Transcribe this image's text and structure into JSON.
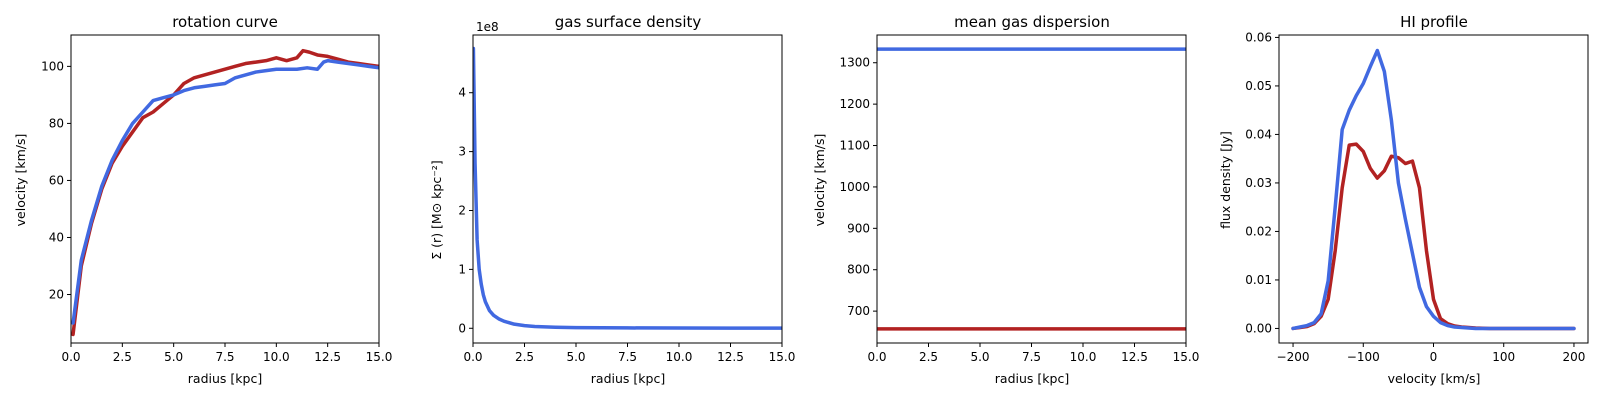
{
  "colors": {
    "red": "#b22222",
    "blue": "#4169e1"
  },
  "chart_data": [
    {
      "type": "line",
      "title": "rotation curve",
      "xlabel": "radius [kpc]",
      "ylabel": "velocity [km/s]",
      "xlim": [
        0,
        15
      ],
      "ylim": [
        3,
        111
      ],
      "xticks": [
        0,
        2.5,
        5,
        7.5,
        10,
        12.5,
        15
      ],
      "xtick_labels": [
        "0.0",
        "2.5",
        "5.0",
        "7.5",
        "10.0",
        "12.5",
        "15.0"
      ],
      "yticks": [
        20,
        40,
        60,
        80,
        100
      ],
      "ytick_labels": [
        "20",
        "40",
        "60",
        "80",
        "100"
      ],
      "series": [
        {
          "color": "red",
          "x": [
            0.1,
            0.5,
            1.0,
            1.5,
            2.0,
            2.5,
            3.0,
            3.5,
            4.0,
            4.5,
            5.0,
            5.5,
            6.0,
            6.5,
            7.0,
            7.5,
            8.0,
            8.5,
            9.0,
            9.5,
            10.0,
            10.5,
            11.0,
            11.3,
            11.6,
            12.0,
            12.5,
            13.0,
            13.5,
            14.0,
            14.5,
            15.0
          ],
          "y": [
            6,
            30,
            45,
            57,
            66,
            72,
            77,
            82,
            84,
            87,
            90,
            94,
            96,
            97,
            98,
            99,
            100,
            101,
            101.5,
            102,
            103,
            102,
            103,
            105.5,
            105,
            104,
            103.5,
            102.5,
            101.5,
            101,
            100.5,
            100
          ]
        },
        {
          "color": "blue",
          "x": [
            0.1,
            0.5,
            1.0,
            1.5,
            2.0,
            2.5,
            3.0,
            3.5,
            4.0,
            4.5,
            5.0,
            5.5,
            6.0,
            6.5,
            7.0,
            7.5,
            8.0,
            8.5,
            9.0,
            9.5,
            10.0,
            10.5,
            11.0,
            11.5,
            12.0,
            12.3,
            12.5,
            13.0,
            13.5,
            14.0,
            14.5,
            15.0
          ],
          "y": [
            10,
            32,
            46,
            58,
            67,
            74,
            80,
            84,
            88,
            89,
            90,
            91.5,
            92.5,
            93,
            93.5,
            94,
            96,
            97,
            98,
            98.5,
            99,
            99,
            99,
            99.5,
            99,
            101.5,
            102,
            101.5,
            101,
            100.5,
            100,
            99.5
          ]
        }
      ]
    },
    {
      "type": "line",
      "title": "gas surface density",
      "xlabel": "radius [kpc]",
      "ylabel": "Σ (r) [M⊙ kpc⁻²]",
      "offset_text": "1e8",
      "xlim": [
        0,
        15
      ],
      "ylim": [
        -0.25,
        4.98
      ],
      "xticks": [
        0,
        2.5,
        5,
        7.5,
        10,
        12.5,
        15
      ],
      "xtick_labels": [
        "0.0",
        "2.5",
        "5.0",
        "7.5",
        "10.0",
        "12.5",
        "15.0"
      ],
      "yticks": [
        0,
        1,
        2,
        3,
        4
      ],
      "ytick_labels": [
        "0",
        "1",
        "2",
        "3",
        "4"
      ],
      "series": [
        {
          "color": "blue",
          "x": [
            0.02,
            0.1,
            0.2,
            0.3,
            0.4,
            0.5,
            0.6,
            0.8,
            1.0,
            1.25,
            1.5,
            2.0,
            2.5,
            3.0,
            4.0,
            5.0,
            7.5,
            10.0,
            12.5,
            15.0
          ],
          "y": [
            4.75,
            2.8,
            1.5,
            1.0,
            0.75,
            0.57,
            0.45,
            0.3,
            0.22,
            0.16,
            0.12,
            0.07,
            0.045,
            0.03,
            0.018,
            0.012,
            0.006,
            0.004,
            0.003,
            0.002
          ]
        }
      ]
    },
    {
      "type": "line",
      "title": "mean gas dispersion",
      "xlabel": "radius [kpc]",
      "ylabel": "velocity [km/s]",
      "xlim": [
        0,
        15
      ],
      "ylim": [
        623,
        1367
      ],
      "xticks": [
        0,
        2.5,
        5,
        7.5,
        10,
        12.5,
        15
      ],
      "xtick_labels": [
        "0.0",
        "2.5",
        "5.0",
        "7.5",
        "10.0",
        "12.5",
        "15.0"
      ],
      "yticks": [
        700,
        800,
        900,
        1000,
        1100,
        1200,
        1300
      ],
      "ytick_labels": [
        "700",
        "800",
        "900",
        "1000",
        "1100",
        "1200",
        "1300"
      ],
      "series": [
        {
          "color": "blue",
          "x": [
            0,
            15
          ],
          "y": [
            1333,
            1333
          ]
        },
        {
          "color": "red",
          "x": [
            0,
            15
          ],
          "y": [
            657,
            657
          ]
        }
      ]
    },
    {
      "type": "line",
      "title": "HI profile",
      "xlabel": "velocity [km/s]",
      "ylabel": "flux density [Jy]",
      "xlim": [
        -220,
        220
      ],
      "ylim": [
        -0.003,
        0.0605
      ],
      "xticks": [
        -200,
        -100,
        0,
        100,
        200
      ],
      "xtick_labels": [
        "−200",
        "−100",
        "0",
        "100",
        "200"
      ],
      "yticks": [
        0,
        0.01,
        0.02,
        0.03,
        0.04,
        0.05,
        0.06
      ],
      "ytick_labels": [
        "0.00",
        "0.01",
        "0.02",
        "0.03",
        "0.04",
        "0.05",
        "0.06"
      ],
      "series": [
        {
          "color": "red",
          "x": [
            -200,
            -190,
            -180,
            -170,
            -160,
            -150,
            -140,
            -130,
            -120,
            -110,
            -100,
            -90,
            -80,
            -70,
            -60,
            -50,
            -40,
            -30,
            -20,
            -10,
            0,
            10,
            20,
            30,
            40,
            50,
            60,
            80,
            100,
            150,
            200
          ],
          "y": [
            0,
            0.0002,
            0.0004,
            0.001,
            0.0025,
            0.006,
            0.016,
            0.029,
            0.0378,
            0.038,
            0.0365,
            0.033,
            0.031,
            0.0325,
            0.0355,
            0.0352,
            0.034,
            0.0345,
            0.029,
            0.016,
            0.006,
            0.002,
            0.001,
            0.0005,
            0.0003,
            0.0002,
            0.0001,
            0,
            0,
            0,
            0
          ]
        },
        {
          "color": "blue",
          "x": [
            -200,
            -190,
            -180,
            -170,
            -160,
            -150,
            -140,
            -130,
            -120,
            -110,
            -100,
            -90,
            -80,
            -70,
            -60,
            -50,
            -40,
            -30,
            -20,
            -10,
            0,
            10,
            20,
            30,
            40,
            50,
            60,
            80,
            100,
            150,
            200
          ],
          "y": [
            0,
            0.0003,
            0.0006,
            0.0012,
            0.003,
            0.0098,
            0.025,
            0.041,
            0.045,
            0.048,
            0.0505,
            0.054,
            0.0573,
            0.053,
            0.043,
            0.03,
            0.0225,
            0.0155,
            0.0085,
            0.0045,
            0.0025,
            0.0012,
            0.0006,
            0.0003,
            0.0002,
            0.0001,
            0,
            0,
            0,
            0,
            0
          ]
        }
      ]
    }
  ]
}
